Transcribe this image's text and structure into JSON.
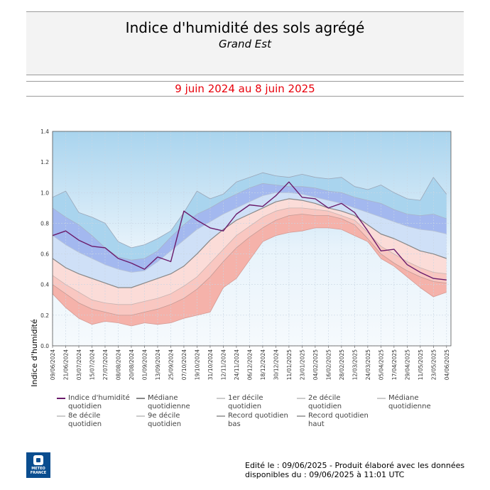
{
  "header": {
    "title": "Indice d'humidité des sols agrégé",
    "subtitle": "Grand Est",
    "period": "9 juin 2024 au 8 juin 2025"
  },
  "footer": {
    "line1": "Edité le : 09/06/2025 - Produit élaboré avec les données",
    "line2": "disponibles du : 09/06/2025 à 11:01 UTC"
  },
  "logo": {
    "text1": "METEO",
    "text2": "FRANCE"
  },
  "colors": {
    "record_high_band": "#a9d4ee",
    "upper_band": "#a3b8ef",
    "upper_mid_band": "#cfe0f7",
    "median_band": "#eef4fb",
    "lower_mid_band": "#fbdcd8",
    "lower_band": "#f5b2aa",
    "record_low_band": "#f2f6fb",
    "index_line": "#6a1a6a",
    "median_line": "#888888",
    "decile_line": "#bbbbbb"
  },
  "legend": [
    {
      "label": "Indice d'humidité quotidien",
      "color": "#6a1a6a"
    },
    {
      "label": "Médiane quotidienne",
      "color": "#888888"
    },
    {
      "label": "1er décile quotidien",
      "color": "#cccccc"
    },
    {
      "label": "2e décile quotidien",
      "color": "#cccccc"
    },
    {
      "label": "Médiane quotidienne",
      "color": "#cccccc"
    },
    {
      "label": "8e décile quotidien",
      "color": "#cccccc"
    },
    {
      "label": "9e décile quotidien",
      "color": "#cccccc"
    },
    {
      "label": "Record quotidien bas",
      "color": "#aaaaaa"
    },
    {
      "label": "Record quotidien haut",
      "color": "#aaaaaa"
    }
  ],
  "chart_data": {
    "type": "area",
    "ylabel": "Indice d'humidité",
    "xlabel": "",
    "ylim": [
      0.0,
      1.4
    ],
    "yticks": [
      "0.0",
      "0.2",
      "0.4",
      "0.6",
      "0.8",
      "1.0",
      "1.2",
      "1.4"
    ],
    "grid": true,
    "xticks": [
      "09/06/2024",
      "21/06/2024",
      "03/07/2024",
      "15/07/2024",
      "27/07/2024",
      "08/08/2024",
      "20/08/2024",
      "01/09/2024",
      "13/09/2024",
      "25/09/2024",
      "07/10/2024",
      "19/10/2024",
      "31/10/2024",
      "12/11/2024",
      "24/11/2024",
      "06/12/2024",
      "18/12/2024",
      "30/12/2024",
      "11/01/2025",
      "23/01/2025",
      "04/02/2025",
      "16/02/2025",
      "28/02/2025",
      "12/03/2025",
      "24/03/2025",
      "05/04/2025",
      "17/04/2025",
      "29/04/2025",
      "11/05/2025",
      "23/05/2025",
      "04/06/2025"
    ],
    "x_start": "09/06/2024",
    "x_end": "08/06/2025",
    "series": [
      {
        "name": "Record quotidien haut",
        "points": [
          [
            "09/06/2024",
            0.97
          ],
          [
            "21/06/2024",
            1.01
          ],
          [
            "03/07/2024",
            0.87
          ],
          [
            "15/07/2024",
            0.84
          ],
          [
            "27/07/2024",
            0.8
          ],
          [
            "08/08/2024",
            0.68
          ],
          [
            "20/08/2024",
            0.64
          ],
          [
            "01/09/2024",
            0.66
          ],
          [
            "13/09/2024",
            0.7
          ],
          [
            "25/09/2024",
            0.75
          ],
          [
            "07/10/2024",
            0.87
          ],
          [
            "19/10/2024",
            1.01
          ],
          [
            "31/10/2024",
            0.96
          ],
          [
            "12/11/2024",
            0.99
          ],
          [
            "24/11/2024",
            1.07
          ],
          [
            "06/12/2024",
            1.1
          ],
          [
            "18/12/2024",
            1.13
          ],
          [
            "30/12/2024",
            1.11
          ],
          [
            "11/01/2025",
            1.1
          ],
          [
            "23/01/2025",
            1.12
          ],
          [
            "04/02/2025",
            1.1
          ],
          [
            "16/02/2025",
            1.09
          ],
          [
            "28/02/2025",
            1.1
          ],
          [
            "12/03/2025",
            1.04
          ],
          [
            "24/03/2025",
            1.02
          ],
          [
            "05/04/2025",
            1.05
          ],
          [
            "17/04/2025",
            1.0
          ],
          [
            "29/04/2025",
            0.96
          ],
          [
            "11/05/2025",
            0.95
          ],
          [
            "23/05/2025",
            1.1
          ],
          [
            "04/06/2025",
            0.99
          ]
        ]
      },
      {
        "name": "9e décile quotidien",
        "points": [
          [
            "09/06/2024",
            0.9
          ],
          [
            "21/06/2024",
            0.84
          ],
          [
            "03/07/2024",
            0.79
          ],
          [
            "15/07/2024",
            0.72
          ],
          [
            "27/07/2024",
            0.64
          ],
          [
            "08/08/2024",
            0.58
          ],
          [
            "20/08/2024",
            0.56
          ],
          [
            "01/09/2024",
            0.57
          ],
          [
            "13/09/2024",
            0.62
          ],
          [
            "25/09/2024",
            0.71
          ],
          [
            "07/10/2024",
            0.79
          ],
          [
            "19/10/2024",
            0.86
          ],
          [
            "31/10/2024",
            0.9
          ],
          [
            "12/11/2024",
            0.95
          ],
          [
            "24/11/2024",
            0.99
          ],
          [
            "06/12/2024",
            1.03
          ],
          [
            "18/12/2024",
            1.06
          ],
          [
            "30/12/2024",
            1.05
          ],
          [
            "11/01/2025",
            1.04
          ],
          [
            "23/01/2025",
            1.04
          ],
          [
            "04/02/2025",
            1.03
          ],
          [
            "16/02/2025",
            1.01
          ],
          [
            "28/02/2025",
            1.0
          ],
          [
            "12/03/2025",
            0.97
          ],
          [
            "24/03/2025",
            0.95
          ],
          [
            "05/04/2025",
            0.93
          ],
          [
            "17/04/2025",
            0.89
          ],
          [
            "29/04/2025",
            0.86
          ],
          [
            "11/05/2025",
            0.85
          ],
          [
            "23/05/2025",
            0.86
          ],
          [
            "04/06/2025",
            0.83
          ]
        ]
      },
      {
        "name": "8e décile quotidien",
        "points": [
          [
            "09/06/2024",
            0.72
          ],
          [
            "21/06/2024",
            0.66
          ],
          [
            "03/07/2024",
            0.61
          ],
          [
            "15/07/2024",
            0.57
          ],
          [
            "27/07/2024",
            0.53
          ],
          [
            "08/08/2024",
            0.5
          ],
          [
            "20/08/2024",
            0.48
          ],
          [
            "01/09/2024",
            0.49
          ],
          [
            "13/09/2024",
            0.55
          ],
          [
            "25/09/2024",
            0.62
          ],
          [
            "07/10/2024",
            0.69
          ],
          [
            "19/10/2024",
            0.76
          ],
          [
            "31/10/2024",
            0.81
          ],
          [
            "12/11/2024",
            0.86
          ],
          [
            "24/11/2024",
            0.9
          ],
          [
            "06/12/2024",
            0.94
          ],
          [
            "18/12/2024",
            0.98
          ],
          [
            "30/12/2024",
            1.0
          ],
          [
            "11/01/2025",
            1.0
          ],
          [
            "23/01/2025",
            0.99
          ],
          [
            "04/02/2025",
            0.97
          ],
          [
            "16/02/2025",
            0.95
          ],
          [
            "28/02/2025",
            0.93
          ],
          [
            "12/03/2025",
            0.9
          ],
          [
            "24/03/2025",
            0.87
          ],
          [
            "05/04/2025",
            0.84
          ],
          [
            "17/04/2025",
            0.81
          ],
          [
            "29/04/2025",
            0.78
          ],
          [
            "11/05/2025",
            0.76
          ],
          [
            "23/05/2025",
            0.75
          ],
          [
            "04/06/2025",
            0.73
          ]
        ]
      },
      {
        "name": "Médiane quotidienne",
        "points": [
          [
            "09/06/2024",
            0.57
          ],
          [
            "21/06/2024",
            0.51
          ],
          [
            "03/07/2024",
            0.47
          ],
          [
            "15/07/2024",
            0.44
          ],
          [
            "27/07/2024",
            0.41
          ],
          [
            "08/08/2024",
            0.38
          ],
          [
            "20/08/2024",
            0.38
          ],
          [
            "01/09/2024",
            0.41
          ],
          [
            "13/09/2024",
            0.44
          ],
          [
            "25/09/2024",
            0.47
          ],
          [
            "07/10/2024",
            0.52
          ],
          [
            "19/10/2024",
            0.6
          ],
          [
            "31/10/2024",
            0.69
          ],
          [
            "12/11/2024",
            0.76
          ],
          [
            "24/11/2024",
            0.82
          ],
          [
            "06/12/2024",
            0.86
          ],
          [
            "18/12/2024",
            0.9
          ],
          [
            "30/12/2024",
            0.94
          ],
          [
            "11/01/2025",
            0.96
          ],
          [
            "23/01/2025",
            0.95
          ],
          [
            "04/02/2025",
            0.93
          ],
          [
            "16/02/2025",
            0.9
          ],
          [
            "28/02/2025",
            0.88
          ],
          [
            "12/03/2025",
            0.85
          ],
          [
            "24/03/2025",
            0.79
          ],
          [
            "05/04/2025",
            0.73
          ],
          [
            "17/04/2025",
            0.7
          ],
          [
            "29/04/2025",
            0.66
          ],
          [
            "11/05/2025",
            0.62
          ],
          [
            "23/05/2025",
            0.6
          ],
          [
            "04/06/2025",
            0.57
          ]
        ]
      },
      {
        "name": "2e décile quotidien",
        "points": [
          [
            "09/06/2024",
            0.46
          ],
          [
            "21/06/2024",
            0.4
          ],
          [
            "03/07/2024",
            0.35
          ],
          [
            "15/07/2024",
            0.3
          ],
          [
            "27/07/2024",
            0.28
          ],
          [
            "08/08/2024",
            0.27
          ],
          [
            "20/08/2024",
            0.27
          ],
          [
            "01/09/2024",
            0.29
          ],
          [
            "13/09/2024",
            0.31
          ],
          [
            "25/09/2024",
            0.34
          ],
          [
            "07/10/2024",
            0.39
          ],
          [
            "19/10/2024",
            0.45
          ],
          [
            "31/10/2024",
            0.54
          ],
          [
            "12/11/2024",
            0.63
          ],
          [
            "24/11/2024",
            0.72
          ],
          [
            "06/12/2024",
            0.78
          ],
          [
            "18/12/2024",
            0.84
          ],
          [
            "30/12/2024",
            0.88
          ],
          [
            "11/01/2025",
            0.9
          ],
          [
            "23/01/2025",
            0.9
          ],
          [
            "04/02/2025",
            0.89
          ],
          [
            "16/02/2025",
            0.88
          ],
          [
            "28/02/2025",
            0.85
          ],
          [
            "12/03/2025",
            0.82
          ],
          [
            "24/03/2025",
            0.74
          ],
          [
            "05/04/2025",
            0.65
          ],
          [
            "17/04/2025",
            0.6
          ],
          [
            "29/04/2025",
            0.55
          ],
          [
            "11/05/2025",
            0.51
          ],
          [
            "23/05/2025",
            0.48
          ],
          [
            "04/06/2025",
            0.47
          ]
        ]
      },
      {
        "name": "1er décile quotidien",
        "points": [
          [
            "09/06/2024",
            0.4
          ],
          [
            "21/06/2024",
            0.34
          ],
          [
            "03/07/2024",
            0.28
          ],
          [
            "15/07/2024",
            0.24
          ],
          [
            "27/07/2024",
            0.22
          ],
          [
            "08/08/2024",
            0.2
          ],
          [
            "20/08/2024",
            0.2
          ],
          [
            "01/09/2024",
            0.22
          ],
          [
            "13/09/2024",
            0.24
          ],
          [
            "25/09/2024",
            0.27
          ],
          [
            "07/10/2024",
            0.31
          ],
          [
            "19/10/2024",
            0.37
          ],
          [
            "31/10/2024",
            0.45
          ],
          [
            "12/11/2024",
            0.55
          ],
          [
            "24/11/2024",
            0.64
          ],
          [
            "06/12/2024",
            0.71
          ],
          [
            "18/12/2024",
            0.77
          ],
          [
            "30/12/2024",
            0.82
          ],
          [
            "11/01/2025",
            0.85
          ],
          [
            "23/01/2025",
            0.86
          ],
          [
            "04/02/2025",
            0.85
          ],
          [
            "16/02/2025",
            0.85
          ],
          [
            "28/02/2025",
            0.83
          ],
          [
            "12/03/2025",
            0.79
          ],
          [
            "24/03/2025",
            0.7
          ],
          [
            "05/04/2025",
            0.6
          ],
          [
            "17/04/2025",
            0.54
          ],
          [
            "29/04/2025",
            0.49
          ],
          [
            "11/05/2025",
            0.45
          ],
          [
            "23/05/2025",
            0.42
          ],
          [
            "04/06/2025",
            0.41
          ]
        ]
      },
      {
        "name": "Record quotidien bas",
        "points": [
          [
            "09/06/2024",
            0.34
          ],
          [
            "21/06/2024",
            0.25
          ],
          [
            "03/07/2024",
            0.18
          ],
          [
            "15/07/2024",
            0.14
          ],
          [
            "27/07/2024",
            0.16
          ],
          [
            "08/08/2024",
            0.15
          ],
          [
            "20/08/2024",
            0.13
          ],
          [
            "01/09/2024",
            0.15
          ],
          [
            "13/09/2024",
            0.14
          ],
          [
            "25/09/2024",
            0.15
          ],
          [
            "07/10/2024",
            0.18
          ],
          [
            "19/10/2024",
            0.2
          ],
          [
            "31/10/2024",
            0.22
          ],
          [
            "12/11/2024",
            0.38
          ],
          [
            "24/11/2024",
            0.44
          ],
          [
            "06/12/2024",
            0.56
          ],
          [
            "18/12/2024",
            0.68
          ],
          [
            "30/12/2024",
            0.72
          ],
          [
            "11/01/2025",
            0.74
          ],
          [
            "23/01/2025",
            0.75
          ],
          [
            "04/02/2025",
            0.77
          ],
          [
            "16/02/2025",
            0.77
          ],
          [
            "28/02/2025",
            0.76
          ],
          [
            "12/03/2025",
            0.72
          ],
          [
            "24/03/2025",
            0.68
          ],
          [
            "05/04/2025",
            0.57
          ],
          [
            "17/04/2025",
            0.52
          ],
          [
            "29/04/2025",
            0.45
          ],
          [
            "11/05/2025",
            0.38
          ],
          [
            "23/05/2025",
            0.32
          ],
          [
            "04/06/2025",
            0.35
          ]
        ]
      },
      {
        "name": "Indice d'humidité quotidien",
        "points": [
          [
            "09/06/2024",
            0.72
          ],
          [
            "21/06/2024",
            0.75
          ],
          [
            "03/07/2024",
            0.69
          ],
          [
            "15/07/2024",
            0.65
          ],
          [
            "27/07/2024",
            0.64
          ],
          [
            "08/08/2024",
            0.57
          ],
          [
            "20/08/2024",
            0.54
          ],
          [
            "01/09/2024",
            0.5
          ],
          [
            "13/09/2024",
            0.58
          ],
          [
            "25/09/2024",
            0.55
          ],
          [
            "07/10/2024",
            0.88
          ],
          [
            "19/10/2024",
            0.82
          ],
          [
            "31/10/2024",
            0.77
          ],
          [
            "12/11/2024",
            0.75
          ],
          [
            "24/11/2024",
            0.86
          ],
          [
            "06/12/2024",
            0.92
          ],
          [
            "18/12/2024",
            0.91
          ],
          [
            "30/12/2024",
            0.98
          ],
          [
            "11/01/2025",
            1.07
          ],
          [
            "23/01/2025",
            0.97
          ],
          [
            "04/02/2025",
            0.96
          ],
          [
            "16/02/2025",
            0.9
          ],
          [
            "28/02/2025",
            0.93
          ],
          [
            "12/03/2025",
            0.87
          ],
          [
            "24/03/2025",
            0.75
          ],
          [
            "05/04/2025",
            0.62
          ],
          [
            "17/04/2025",
            0.63
          ],
          [
            "29/04/2025",
            0.53
          ],
          [
            "11/05/2025",
            0.48
          ],
          [
            "23/05/2025",
            0.44
          ],
          [
            "04/06/2025",
            0.43
          ]
        ]
      }
    ]
  }
}
